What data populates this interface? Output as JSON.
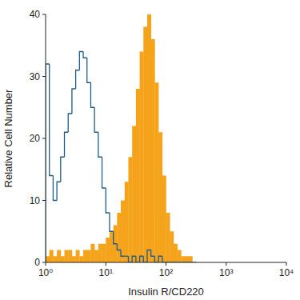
{
  "chart_data": {
    "type": "histogram",
    "x_label": "Insulin R/CD220",
    "y_label": "Relative Cell Number",
    "log": "x",
    "grid": false,
    "xlim": [
      1,
      10000
    ],
    "xticks": [
      {
        "value": 1,
        "label": "10⁰"
      },
      {
        "value": 10,
        "label": "10¹"
      },
      {
        "value": 100,
        "label": "10²"
      },
      {
        "value": 1000,
        "label": "10³"
      },
      {
        "value": 10000,
        "label": "10⁴"
      }
    ],
    "ylim": [
      0,
      40
    ],
    "yticks": [
      0,
      10,
      20,
      30,
      40
    ],
    "bins": [
      1,
      1.155,
      1.334,
      1.54,
      1.778,
      2.054,
      2.371,
      2.738,
      3.162,
      3.652,
      4.217,
      4.87,
      5.623,
      6.494,
      7.499,
      8.66,
      10,
      11.55,
      13.34,
      15.4,
      17.78,
      20.54,
      23.71,
      27.38,
      31.62,
      36.52,
      42.17,
      48.7,
      56.23,
      64.94,
      74.99,
      86.6,
      100,
      115.5,
      133.4,
      154.0,
      177.8,
      205.4,
      237.1,
      273.8,
      316.2
    ],
    "series": [
      {
        "type": "area",
        "color": "#f5a31a",
        "values": [
          1,
          2,
          1,
          2,
          1,
          2,
          2,
          1,
          2,
          1,
          2,
          2,
          3,
          2,
          3,
          3,
          4,
          5,
          6,
          8,
          10,
          13,
          17,
          22,
          28,
          34,
          38,
          40,
          36,
          29,
          21,
          14,
          8,
          5,
          3,
          2,
          1,
          1,
          1,
          0
        ]
      },
      {
        "type": "step",
        "color": "#1f5d8c",
        "values": [
          32,
          14,
          10,
          13,
          17,
          21,
          24,
          28,
          31,
          34,
          33,
          29,
          25,
          21,
          17,
          12,
          8,
          5,
          3,
          2,
          1,
          1,
          0,
          1,
          0,
          1,
          0,
          2,
          1,
          0,
          1,
          0,
          0,
          0,
          0,
          0,
          0,
          0,
          0,
          0
        ]
      }
    ]
  }
}
